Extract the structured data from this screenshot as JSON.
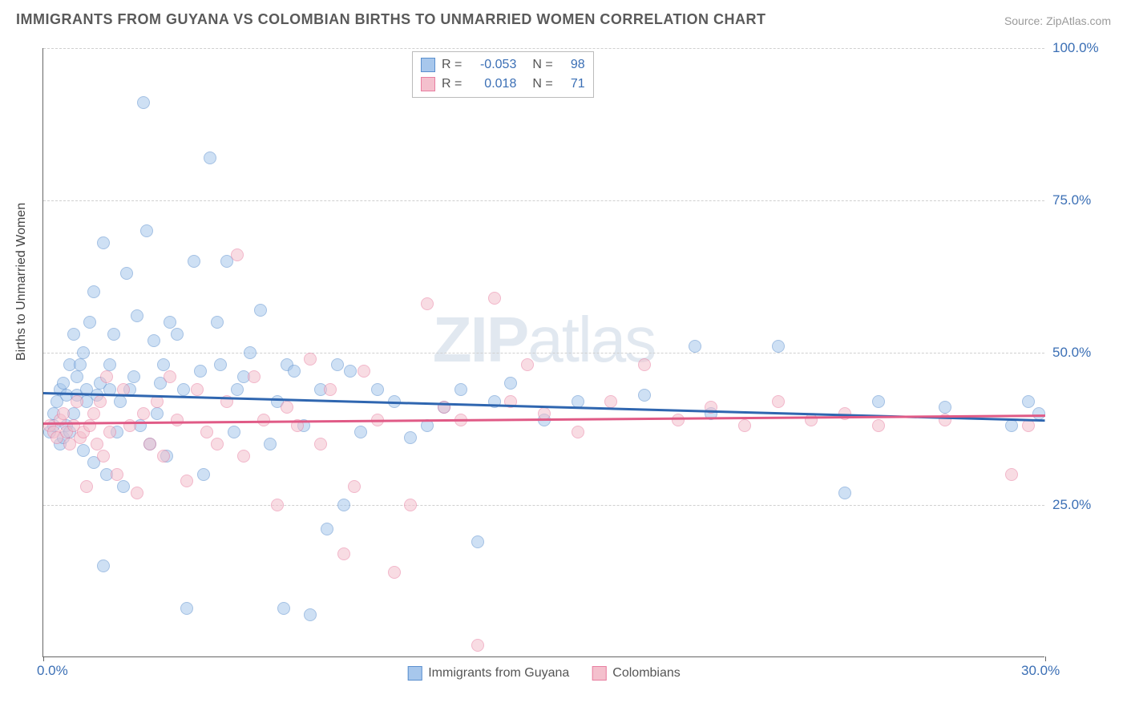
{
  "title": "IMMIGRANTS FROM GUYANA VS COLOMBIAN BIRTHS TO UNMARRIED WOMEN CORRELATION CHART",
  "source_prefix": "Source: ",
  "source_name": "ZipAtlas.com",
  "ylabel": "Births to Unmarried Women",
  "watermark_bold": "ZIP",
  "watermark_rest": "atlas",
  "chart": {
    "type": "scatter-with-trend",
    "xlim": [
      0,
      30
    ],
    "ylim": [
      0,
      100
    ],
    "xticks": [
      {
        "v": 0,
        "label": "0.0%"
      },
      {
        "v": 30,
        "label": "30.0%"
      }
    ],
    "yticks": [
      {
        "v": 25,
        "label": "25.0%"
      },
      {
        "v": 50,
        "label": "50.0%"
      },
      {
        "v": 75,
        "label": "75.0%"
      },
      {
        "v": 100,
        "label": "100.0%"
      }
    ],
    "grid_color": "#d0d0d0",
    "background_color": "#ffffff",
    "axis_color": "#666666",
    "axis_label_color": "#3b6fb5",
    "marker_size": 16,
    "marker_opacity": 0.55,
    "trend_width": 2.5,
    "series": [
      {
        "name": "Immigrants from Guyana",
        "fill": "#a7c7ec",
        "stroke": "#5a8fce",
        "trend_color": "#2f66b0",
        "R": "-0.053",
        "N": "98",
        "trend": {
          "x0": 0,
          "y0": 43.5,
          "x1": 30,
          "y1": 39.0
        },
        "points": [
          [
            0.2,
            37
          ],
          [
            0.3,
            38
          ],
          [
            0.3,
            40
          ],
          [
            0.4,
            42
          ],
          [
            0.5,
            35
          ],
          [
            0.5,
            44
          ],
          [
            0.6,
            36
          ],
          [
            0.6,
            45
          ],
          [
            0.7,
            38
          ],
          [
            0.7,
            43
          ],
          [
            0.8,
            37
          ],
          [
            0.8,
            48
          ],
          [
            0.9,
            40
          ],
          [
            0.9,
            53
          ],
          [
            1.0,
            43
          ],
          [
            1.0,
            46
          ],
          [
            1.1,
            48
          ],
          [
            1.2,
            50
          ],
          [
            1.2,
            34
          ],
          [
            1.3,
            42
          ],
          [
            1.3,
            44
          ],
          [
            1.4,
            55
          ],
          [
            1.5,
            60
          ],
          [
            1.5,
            32
          ],
          [
            1.6,
            43
          ],
          [
            1.7,
            45
          ],
          [
            1.8,
            68
          ],
          [
            1.8,
            15
          ],
          [
            1.9,
            30
          ],
          [
            2.0,
            44
          ],
          [
            2.0,
            48
          ],
          [
            2.1,
            53
          ],
          [
            2.2,
            37
          ],
          [
            2.3,
            42
          ],
          [
            2.4,
            28
          ],
          [
            2.5,
            63
          ],
          [
            2.6,
            44
          ],
          [
            2.7,
            46
          ],
          [
            2.8,
            56
          ],
          [
            2.9,
            38
          ],
          [
            3.0,
            91
          ],
          [
            3.1,
            70
          ],
          [
            3.2,
            35
          ],
          [
            3.3,
            52
          ],
          [
            3.4,
            40
          ],
          [
            3.5,
            45
          ],
          [
            3.6,
            48
          ],
          [
            3.7,
            33
          ],
          [
            3.8,
            55
          ],
          [
            4.0,
            53
          ],
          [
            4.2,
            44
          ],
          [
            4.3,
            8
          ],
          [
            4.5,
            65
          ],
          [
            4.7,
            47
          ],
          [
            4.8,
            30
          ],
          [
            5.0,
            82
          ],
          [
            5.2,
            55
          ],
          [
            5.3,
            48
          ],
          [
            5.5,
            65
          ],
          [
            5.7,
            37
          ],
          [
            5.8,
            44
          ],
          [
            6.0,
            46
          ],
          [
            6.2,
            50
          ],
          [
            6.5,
            57
          ],
          [
            6.8,
            35
          ],
          [
            7.0,
            42
          ],
          [
            7.2,
            8
          ],
          [
            7.3,
            48
          ],
          [
            7.5,
            47
          ],
          [
            7.8,
            38
          ],
          [
            8.0,
            7
          ],
          [
            8.3,
            44
          ],
          [
            8.5,
            21
          ],
          [
            8.8,
            48
          ],
          [
            9.0,
            25
          ],
          [
            9.2,
            47
          ],
          [
            9.5,
            37
          ],
          [
            10.0,
            44
          ],
          [
            10.5,
            42
          ],
          [
            11.0,
            36
          ],
          [
            11.5,
            38
          ],
          [
            12.0,
            41
          ],
          [
            12.5,
            44
          ],
          [
            13.0,
            19
          ],
          [
            13.5,
            42
          ],
          [
            14.0,
            45
          ],
          [
            15.0,
            39
          ],
          [
            16.0,
            42
          ],
          [
            18.0,
            43
          ],
          [
            19.5,
            51
          ],
          [
            20.0,
            40
          ],
          [
            22.0,
            51
          ],
          [
            24.0,
            27
          ],
          [
            25.0,
            42
          ],
          [
            27.0,
            41
          ],
          [
            29.0,
            38
          ],
          [
            29.5,
            42
          ],
          [
            29.8,
            40
          ]
        ]
      },
      {
        "name": "Colombians",
        "fill": "#f4c0cd",
        "stroke": "#e87ea0",
        "trend_color": "#e05a86",
        "R": "0.018",
        "N": "71",
        "trend": {
          "x0": 0,
          "y0": 38.5,
          "x1": 30,
          "y1": 39.8
        },
        "points": [
          [
            0.2,
            38
          ],
          [
            0.3,
            37
          ],
          [
            0.4,
            36
          ],
          [
            0.5,
            39
          ],
          [
            0.6,
            40
          ],
          [
            0.7,
            37
          ],
          [
            0.8,
            35
          ],
          [
            0.9,
            38
          ],
          [
            1.0,
            42
          ],
          [
            1.1,
            36
          ],
          [
            1.2,
            37
          ],
          [
            1.3,
            28
          ],
          [
            1.4,
            38
          ],
          [
            1.5,
            40
          ],
          [
            1.6,
            35
          ],
          [
            1.7,
            42
          ],
          [
            1.8,
            33
          ],
          [
            1.9,
            46
          ],
          [
            2.0,
            37
          ],
          [
            2.2,
            30
          ],
          [
            2.4,
            44
          ],
          [
            2.6,
            38
          ],
          [
            2.8,
            27
          ],
          [
            3.0,
            40
          ],
          [
            3.2,
            35
          ],
          [
            3.4,
            42
          ],
          [
            3.6,
            33
          ],
          [
            3.8,
            46
          ],
          [
            4.0,
            39
          ],
          [
            4.3,
            29
          ],
          [
            4.6,
            44
          ],
          [
            4.9,
            37
          ],
          [
            5.2,
            35
          ],
          [
            5.5,
            42
          ],
          [
            5.8,
            66
          ],
          [
            6.0,
            33
          ],
          [
            6.3,
            46
          ],
          [
            6.6,
            39
          ],
          [
            7.0,
            25
          ],
          [
            7.3,
            41
          ],
          [
            7.6,
            38
          ],
          [
            8.0,
            49
          ],
          [
            8.3,
            35
          ],
          [
            8.6,
            44
          ],
          [
            9.0,
            17
          ],
          [
            9.3,
            28
          ],
          [
            9.6,
            47
          ],
          [
            10.0,
            39
          ],
          [
            10.5,
            14
          ],
          [
            11.0,
            25
          ],
          [
            11.5,
            58
          ],
          [
            12.0,
            41
          ],
          [
            12.5,
            39
          ],
          [
            13.0,
            2
          ],
          [
            13.5,
            59
          ],
          [
            14.0,
            42
          ],
          [
            14.5,
            48
          ],
          [
            15.0,
            40
          ],
          [
            16.0,
            37
          ],
          [
            17.0,
            42
          ],
          [
            18.0,
            48
          ],
          [
            19.0,
            39
          ],
          [
            20.0,
            41
          ],
          [
            21.0,
            38
          ],
          [
            22.0,
            42
          ],
          [
            23.0,
            39
          ],
          [
            24.0,
            40
          ],
          [
            25.0,
            38
          ],
          [
            27.0,
            39
          ],
          [
            29.0,
            30
          ],
          [
            29.5,
            38
          ]
        ]
      }
    ]
  },
  "legend_bottom": [
    {
      "label": "Immigrants from Guyana",
      "fill": "#a7c7ec",
      "stroke": "#5a8fce"
    },
    {
      "label": "Colombians",
      "fill": "#f4c0cd",
      "stroke": "#e87ea0"
    }
  ]
}
